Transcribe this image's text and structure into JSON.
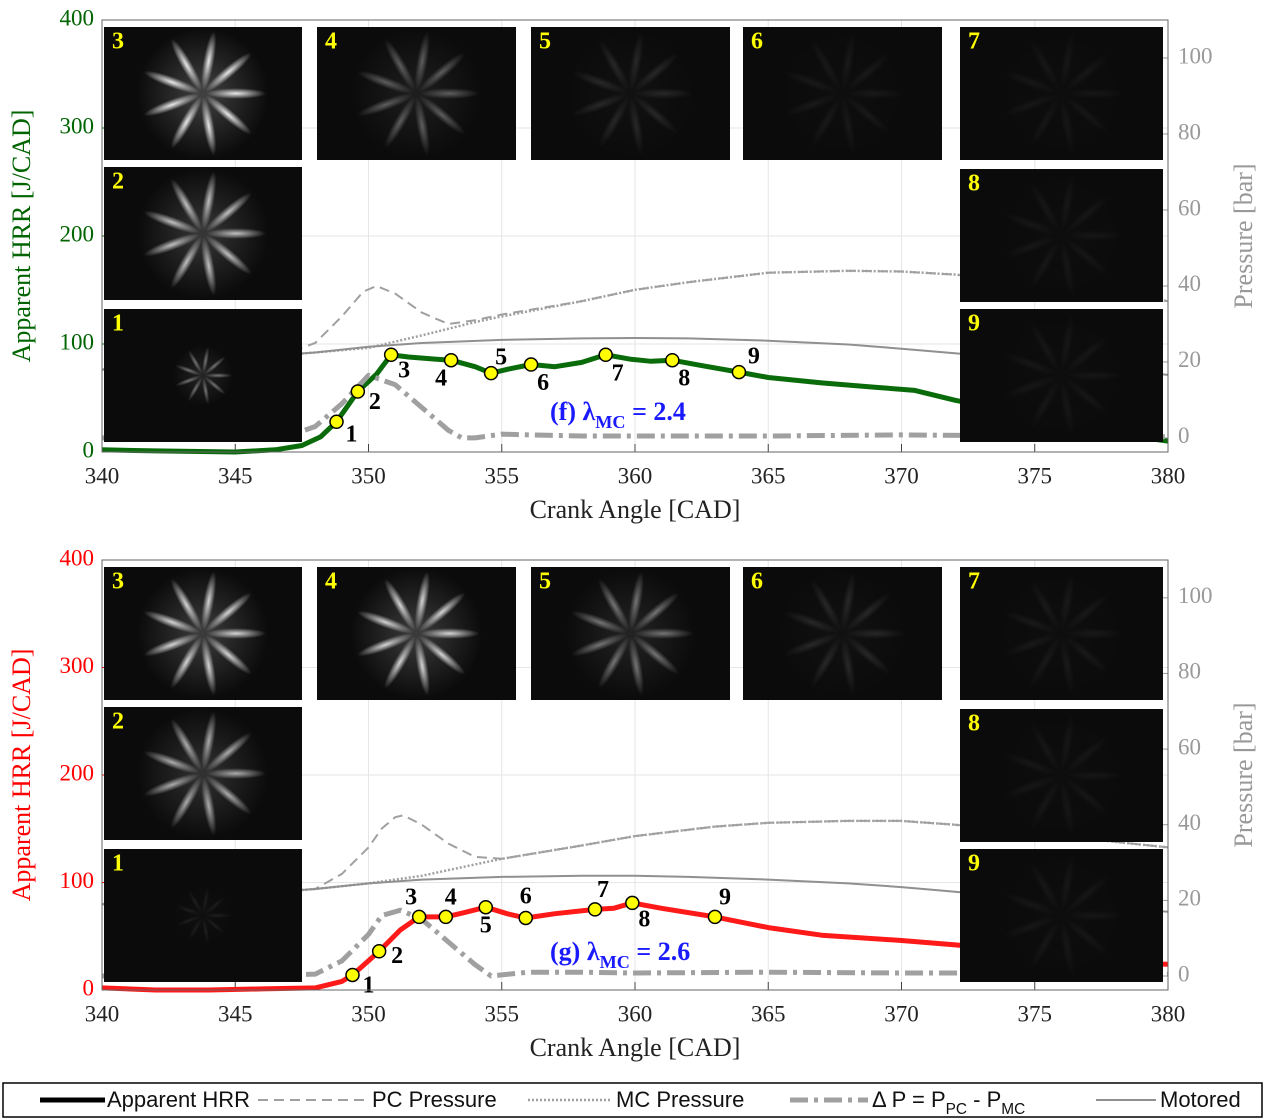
{
  "chart_data": [
    {
      "type": "line",
      "x_label": "Crank Angle [CAD]",
      "y_label": "Apparent HRR [J/CAD]",
      "y2_label": "Pressure [bar]",
      "y_label_color": "#006400",
      "xlim": [
        340,
        380
      ],
      "xticks": [
        340,
        345,
        350,
        355,
        360,
        365,
        370,
        375,
        380
      ],
      "ylim": [
        0,
        400
      ],
      "yticks": [
        0,
        100,
        200,
        300,
        400
      ],
      "y2lim": [
        -3.7,
        110
      ],
      "y2ticks": [
        0,
        20,
        40,
        60,
        80,
        100
      ],
      "grid": true,
      "annotation": "(f) λMC = 2.4",
      "inset_labels": [
        "1",
        "2",
        "3",
        "4",
        "5",
        "6",
        "7",
        "8",
        "9"
      ],
      "markers": {
        "x": [
          348.8,
          349.6,
          350.85,
          353.1,
          354.6,
          356.1,
          358.9,
          361.4,
          363.9
        ],
        "values": [
          28,
          56,
          90,
          85,
          73,
          81,
          90,
          85,
          74
        ],
        "labels": [
          "1",
          "2",
          "3",
          "4",
          "5",
          "6",
          "7",
          "8",
          "9"
        ]
      },
      "series": [
        {
          "name": "Apparent HRR",
          "color": "#0a6b0a",
          "style": "solid-thick",
          "x": [
            340,
            342,
            345,
            346.5,
            347.5,
            348.2,
            348.8,
            349.6,
            350.3,
            350.85,
            351.5,
            352.5,
            353.1,
            354,
            354.6,
            355.3,
            356.1,
            357,
            358,
            358.9,
            359.8,
            360.6,
            361.4,
            362.5,
            363.9,
            365,
            367,
            369,
            370.5,
            372,
            374,
            376,
            378,
            380
          ],
          "values": [
            2,
            1,
            0,
            2,
            6,
            14,
            28,
            56,
            72,
            90,
            88,
            86,
            85,
            79,
            73,
            77,
            81,
            79,
            83,
            90,
            86,
            84,
            85,
            80,
            74,
            69,
            64,
            60,
            57,
            48,
            38,
            28,
            17,
            10
          ]
        },
        {
          "name": "PC Pressure",
          "color": "#a0a0a0",
          "style": "dashed",
          "axis": "y2",
          "x": [
            340,
            345,
            347,
            348,
            349,
            349.8,
            350.3,
            351,
            352,
            353,
            354,
            355,
            358,
            360,
            362,
            365,
            368,
            370,
            372,
            375,
            378,
            380
          ],
          "values": [
            18,
            21,
            22.5,
            25,
            32,
            38.5,
            40,
            38,
            33,
            30,
            31,
            32.5,
            36,
            39,
            41,
            43.5,
            44,
            43.8,
            43,
            41,
            38.5,
            36
          ]
        },
        {
          "name": "MC Pressure",
          "color": "#a0a0a0",
          "style": "dotted",
          "axis": "y2",
          "x": [
            340,
            345,
            348,
            350,
            352,
            354,
            355,
            358,
            360,
            362,
            365,
            368,
            370,
            372,
            375,
            378,
            380
          ],
          "values": [
            18,
            21,
            22.5,
            23.7,
            27,
            30.5,
            32,
            36,
            39,
            41,
            43.5,
            44,
            43.8,
            43,
            41,
            38.5,
            36
          ]
        },
        {
          "name": "Δ P = PPC - PMC",
          "color": "#a0a0a0",
          "style": "dashdot-thick",
          "axis": "y2",
          "x": [
            340,
            345,
            347,
            348,
            349,
            350,
            351,
            352,
            353,
            353.5,
            354,
            355,
            356,
            358,
            360,
            365,
            370,
            375,
            380
          ],
          "values": [
            0,
            0,
            0.5,
            3,
            9,
            16.5,
            14,
            8,
            2,
            0,
            0,
            1,
            0.8,
            0.5,
            0.5,
            0.5,
            0.8,
            0.5,
            0.3
          ]
        },
        {
          "name": "Motored",
          "color": "#909090",
          "style": "solid",
          "axis": "y2",
          "x": [
            340,
            345,
            348,
            350,
            352,
            355,
            358,
            360,
            362,
            365,
            368,
            370,
            372,
            375,
            378,
            380
          ],
          "values": [
            18,
            21,
            22.5,
            24,
            25,
            25.8,
            26.2,
            26.3,
            26.2,
            25.6,
            24.6,
            23.5,
            22.3,
            20.5,
            18,
            16.6
          ]
        }
      ]
    },
    {
      "type": "line",
      "x_label": "Crank Angle [CAD]",
      "y_label": "Apparent HRR [J/CAD]",
      "y2_label": "Pressure [bar]",
      "y_label_color": "#ff0000",
      "xlim": [
        340,
        380
      ],
      "xticks": [
        340,
        345,
        350,
        355,
        360,
        365,
        370,
        375,
        380
      ],
      "ylim": [
        0,
        400
      ],
      "yticks": [
        0,
        100,
        200,
        300,
        400
      ],
      "y2lim": [
        -3.7,
        110
      ],
      "y2ticks": [
        0,
        20,
        40,
        60,
        80,
        100
      ],
      "grid": true,
      "annotation": "(g) λMC = 2.6",
      "inset_labels": [
        "1",
        "2",
        "3",
        "4",
        "5",
        "6",
        "7",
        "8",
        "9"
      ],
      "markers": {
        "x": [
          349.4,
          350.4,
          351.9,
          352.9,
          354.4,
          355.9,
          358.5,
          359.9,
          363.0
        ],
        "values": [
          14,
          36,
          68,
          68,
          77,
          67,
          75,
          81,
          68
        ],
        "labels": [
          "1",
          "2",
          "3",
          "4",
          "5",
          "6",
          "7",
          "8",
          "9"
        ]
      },
      "series": [
        {
          "name": "Apparent HRR",
          "color": "#ff1a1a",
          "style": "solid-thick",
          "x": [
            340,
            342,
            344,
            346,
            348,
            349,
            349.4,
            350.4,
            351.2,
            351.9,
            352.9,
            353.6,
            354.4,
            355.2,
            355.9,
            357,
            358.5,
            359.2,
            359.9,
            361,
            363,
            365,
            367,
            370,
            373,
            376,
            378,
            380
          ],
          "values": [
            2,
            0,
            0,
            1,
            2,
            8,
            14,
            36,
            56,
            68,
            68,
            72,
            77,
            71,
            67,
            71,
            75,
            76,
            81,
            76,
            68,
            58,
            51,
            46,
            40,
            31,
            25,
            24
          ]
        },
        {
          "name": "PC Pressure",
          "color": "#a0a0a0",
          "style": "dashed",
          "axis": "y2",
          "x": [
            340,
            345,
            348,
            349,
            350,
            350.5,
            351,
            351.3,
            352,
            353,
            354,
            355,
            358,
            360,
            363,
            365,
            368,
            370,
            372,
            375,
            378,
            380
          ],
          "values": [
            19,
            21.5,
            23,
            27,
            34,
            39,
            42,
            42.5,
            40,
            35,
            31.5,
            31,
            34.5,
            37,
            39.5,
            40.5,
            41,
            41,
            40,
            38,
            35.5,
            34
          ]
        },
        {
          "name": "MC Pressure",
          "color": "#a0a0a0",
          "style": "dotted",
          "axis": "y2",
          "x": [
            340,
            345,
            348,
            350,
            352,
            354,
            355,
            358,
            360,
            363,
            365,
            368,
            370,
            372,
            375,
            378,
            380
          ],
          "values": [
            19,
            21.5,
            23,
            24.5,
            26.5,
            29.5,
            31,
            34.5,
            37,
            39.5,
            40.5,
            41,
            41,
            40,
            38,
            35.5,
            34
          ]
        },
        {
          "name": "Δ P = PPC - PMC",
          "color": "#a0a0a0",
          "style": "dashdot-thick",
          "axis": "y2",
          "x": [
            340,
            345,
            348,
            349,
            350,
            350.5,
            351.2,
            352,
            353,
            354,
            354.6,
            355,
            356,
            358,
            360,
            365,
            370,
            375,
            380
          ],
          "values": [
            0,
            0,
            0.5,
            4,
            11,
            16,
            17.4,
            15,
            9,
            3,
            0,
            0.3,
            1,
            1,
            0.8,
            1,
            0.8,
            0.8,
            0.5
          ]
        },
        {
          "name": "Motored",
          "color": "#909090",
          "style": "solid",
          "axis": "y2",
          "x": [
            340,
            345,
            348,
            350,
            352,
            355,
            358,
            360,
            362,
            365,
            368,
            370,
            372,
            375,
            378,
            380
          ],
          "values": [
            19,
            21.5,
            23,
            24.5,
            25.5,
            26.2,
            26.5,
            26.5,
            26.2,
            25.5,
            24.5,
            23.5,
            22.3,
            20.3,
            18,
            17
          ]
        }
      ]
    }
  ]
}
